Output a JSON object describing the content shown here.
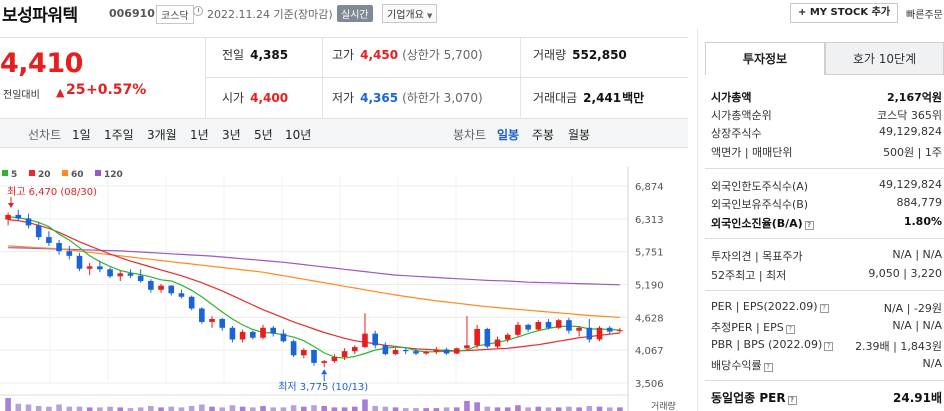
{
  "header": {
    "title": "보성파워텍",
    "code": "006910",
    "market": "코스닥",
    "date": "2022.11.24  기준(장마감)",
    "realtime": "실시간",
    "overview": "기업개요",
    "mystock": "+ MY STOCK 추가",
    "quick": "빠른주문"
  },
  "price": {
    "current": "4,410",
    "change_label": "전일대비",
    "change_arrow": "▲",
    "change": "25",
    "change_pct": "+0.57%"
  },
  "quote": {
    "prev_label": "전일",
    "prev": "4,385",
    "high_label": "고가",
    "high": "4,450",
    "upper_limit": "(상한가 5,700)",
    "volume_label": "거래량",
    "volume": "552,850",
    "open_label": "시가",
    "open": "4,400",
    "low_label": "저가",
    "low": "4,365",
    "lower_limit": "(하한가 3,070)",
    "amount_label": "거래대금",
    "amount": "2,441",
    "amount_unit": "백만"
  },
  "chart_tools": {
    "line_chart": "선차트",
    "periods": [
      "1일",
      "1주일",
      "3개월",
      "1년",
      "3년",
      "5년",
      "10년"
    ],
    "candle_chart": "봉차트",
    "daily": "일봉",
    "weekly": "주봉",
    "monthly": "월봉"
  },
  "chart_data": {
    "type": "line",
    "y_ticks": [
      "6,874",
      "6,313",
      "5,751",
      "5,190",
      "4,628",
      "4,067",
      "3,506"
    ],
    "ylim": [
      3506,
      6874
    ],
    "moving_averages": [
      {
        "name": "5",
        "color": "#2db62d"
      },
      {
        "name": "20",
        "color": "#e52c2c"
      },
      {
        "name": "60",
        "color": "#ff8a1d"
      },
      {
        "name": "120",
        "color": "#9b59c6"
      }
    ],
    "high_note": "최고 6,470 (08/30)",
    "low_note": "최저 3,775 (10/13)",
    "volume_label": "거래량",
    "up_color": "#e51f1f",
    "down_color": "#1b63d8",
    "candles": [
      [
        6300,
        6420,
        6200,
        6380
      ],
      [
        6380,
        6470,
        6280,
        6320
      ],
      [
        6320,
        6400,
        6150,
        6200
      ],
      [
        6200,
        6250,
        5950,
        6000
      ],
      [
        6000,
        6100,
        5850,
        5900
      ],
      [
        5900,
        5950,
        5700,
        5760
      ],
      [
        5760,
        5850,
        5620,
        5680
      ],
      [
        5680,
        5730,
        5420,
        5460
      ],
      [
        5460,
        5560,
        5350,
        5500
      ],
      [
        5500,
        5600,
        5400,
        5450
      ],
      [
        5450,
        5480,
        5300,
        5330
      ],
      [
        5330,
        5420,
        5250,
        5380
      ],
      [
        5380,
        5450,
        5300,
        5340
      ],
      [
        5340,
        5450,
        5220,
        5250
      ],
      [
        5250,
        5280,
        5050,
        5100
      ],
      [
        5100,
        5200,
        5050,
        5170
      ],
      [
        5170,
        5180,
        5000,
        5040
      ],
      [
        5040,
        5100,
        4950,
        4980
      ],
      [
        4980,
        5000,
        4750,
        4780
      ],
      [
        4780,
        4800,
        4520,
        4550
      ],
      [
        4550,
        4650,
        4450,
        4600
      ],
      [
        4600,
        4620,
        4400,
        4450
      ],
      [
        4450,
        4480,
        4200,
        4250
      ],
      [
        4250,
        4420,
        4200,
        4380
      ],
      [
        4380,
        4400,
        4250,
        4280
      ],
      [
        4280,
        4500,
        4250,
        4450
      ],
      [
        4450,
        4480,
        4300,
        4350
      ],
      [
        4350,
        4420,
        4200,
        4220
      ],
      [
        4220,
        4250,
        3950,
        3980
      ],
      [
        3980,
        4100,
        3930,
        4070
      ],
      [
        4070,
        4080,
        3800,
        3850
      ],
      [
        3850,
        3900,
        3775,
        3880
      ],
      [
        3880,
        4000,
        3850,
        3950
      ],
      [
        3950,
        4100,
        3900,
        4050
      ],
      [
        4050,
        4150,
        4000,
        4120
      ],
      [
        4120,
        4700,
        4100,
        4350
      ],
      [
        4350,
        4400,
        4100,
        4150
      ],
      [
        4150,
        4200,
        3980,
        4000
      ],
      [
        4000,
        4100,
        3980,
        4070
      ],
      [
        4070,
        4110,
        4000,
        4050
      ],
      [
        4050,
        4100,
        3980,
        4010
      ],
      [
        4010,
        4060,
        3990,
        4040
      ],
      [
        4040,
        4120,
        4000,
        4080
      ],
      [
        4080,
        4110,
        3990,
        4010
      ],
      [
        4010,
        4110,
        4000,
        4100
      ],
      [
        4100,
        4650,
        4080,
        4150
      ],
      [
        4150,
        4500,
        4100,
        4430
      ],
      [
        4430,
        4450,
        4100,
        4130
      ],
      [
        4130,
        4300,
        4100,
        4250
      ],
      [
        4250,
        4360,
        4200,
        4330
      ],
      [
        4330,
        4550,
        4300,
        4500
      ],
      [
        4500,
        4520,
        4380,
        4420
      ],
      [
        4420,
        4580,
        4400,
        4550
      ],
      [
        4550,
        4600,
        4420,
        4450
      ],
      [
        4450,
        4600,
        4430,
        4580
      ],
      [
        4580,
        4620,
        4350,
        4400
      ],
      [
        4400,
        4480,
        4300,
        4450
      ],
      [
        4450,
        4600,
        4200,
        4250
      ],
      [
        4250,
        4480,
        4220,
        4450
      ],
      [
        4450,
        4480,
        4340,
        4385
      ],
      [
        4400,
        4450,
        4365,
        4410
      ]
    ],
    "volumes": [
      18,
      10,
      9,
      7,
      6,
      9,
      6,
      6,
      5,
      5,
      6,
      5,
      4,
      5,
      7,
      5,
      6,
      5,
      7,
      9,
      6,
      5,
      8,
      6,
      5,
      7,
      5,
      5,
      8,
      6,
      8,
      7,
      5,
      5,
      6,
      16,
      7,
      6,
      5,
      4,
      4,
      4,
      4,
      5,
      5,
      14,
      12,
      6,
      5,
      5,
      8,
      5,
      6,
      5,
      5,
      6,
      5,
      7,
      6,
      5,
      5
    ],
    "ma5": [
      6350,
      6330,
      6300,
      6250,
      6180,
      6050,
      5950,
      5820,
      5680,
      5580,
      5500,
      5430,
      5390,
      5360,
      5320,
      5270,
      5250,
      5180,
      5090,
      4980,
      4850,
      4720,
      4600,
      4500,
      4420,
      4370,
      4360,
      4330,
      4290,
      4230,
      4130,
      4020,
      3950,
      3930,
      3960,
      4010,
      4070,
      4100,
      4120,
      4110,
      4060,
      4040,
      4040,
      4050,
      4050,
      4070,
      4140,
      4170,
      4200,
      4240,
      4290,
      4350,
      4400,
      4440,
      4470,
      4480,
      4470,
      4430,
      4430,
      4420,
      4410
    ],
    "ma20": [
      6300,
      6280,
      6250,
      6200,
      6150,
      6080,
      6000,
      5920,
      5850,
      5780,
      5710,
      5650,
      5590,
      5540,
      5490,
      5440,
      5390,
      5340,
      5280,
      5220,
      5150,
      5080,
      5000,
      4920,
      4840,
      4760,
      4690,
      4620,
      4550,
      4490,
      4430,
      4370,
      4320,
      4270,
      4230,
      4200,
      4180,
      4150,
      4130,
      4110,
      4090,
      4080,
      4070,
      4060,
      4060,
      4060,
      4070,
      4080,
      4090,
      4100,
      4120,
      4140,
      4160,
      4190,
      4220,
      4250,
      4280,
      4300,
      4320,
      4340,
      4360
    ],
    "ma60": [
      5850,
      5840,
      5830,
      5820,
      5810,
      5800,
      5780,
      5760,
      5740,
      5720,
      5700,
      5680,
      5660,
      5640,
      5620,
      5600,
      5580,
      5560,
      5540,
      5520,
      5500,
      5480,
      5460,
      5440,
      5420,
      5400,
      5370,
      5340,
      5310,
      5280,
      5250,
      5220,
      5190,
      5160,
      5130,
      5100,
      5070,
      5040,
      5010,
      4985,
      4960,
      4935,
      4910,
      4890,
      4870,
      4850,
      4830,
      4810,
      4795,
      4780,
      4765,
      4750,
      4735,
      4720,
      4705,
      4690,
      4675,
      4660,
      4650,
      4640,
      4630
    ],
    "ma120": [
      5820,
      5815,
      5810,
      5805,
      5800,
      5795,
      5790,
      5785,
      5780,
      5775,
      5770,
      5765,
      5755,
      5745,
      5735,
      5725,
      5715,
      5705,
      5695,
      5685,
      5675,
      5660,
      5645,
      5630,
      5615,
      5600,
      5585,
      5570,
      5550,
      5530,
      5510,
      5490,
      5470,
      5450,
      5430,
      5410,
      5390,
      5370,
      5350,
      5340,
      5330,
      5320,
      5310,
      5300,
      5290,
      5280,
      5270,
      5260,
      5255,
      5250,
      5240,
      5230,
      5225,
      5220,
      5215,
      5210,
      5205,
      5200,
      5195,
      5190,
      5185
    ]
  },
  "panel": {
    "tab_info": "투자정보",
    "tab_orderbook": "호가 10단계",
    "market_cap_label": "시가총액",
    "market_cap": "2,167억원",
    "market_cap_rank_label": "시가총액순위",
    "market_cap_rank": "코스닥 365위",
    "shares_label": "상장주식수",
    "shares": "49,129,824",
    "par_label": "액면가 | 매매단위",
    "par": "500원  |  1주",
    "foreign_limit_label": "외국인한도주식수(A)",
    "foreign_limit": "49,129,824",
    "foreign_hold_label": "외국인보유주식수(B)",
    "foreign_hold": "884,779",
    "foreign_ratio_label": "외국인소진율(B/A)",
    "foreign_ratio": "1.80%",
    "opinion_label": "투자의견 | 목표주가",
    "opinion": "N/A  |  N/A",
    "week52_label": "52주최고 | 최저",
    "week52": "9,050  |  3,220",
    "per_label": "PER | EPS(2022.09)",
    "per": "N/A  |  -29원",
    "est_per_label": "추정PER | EPS",
    "est_per": "N/A  |  N/A",
    "pbr_label": "PBR | BPS (2022.09)",
    "pbr": "2.39배  |  1,843원",
    "dividend_label": "배당수익률",
    "dividend": "N/A",
    "industry_per_label": "동일업종 PER",
    "industry_per": "24.91배"
  }
}
